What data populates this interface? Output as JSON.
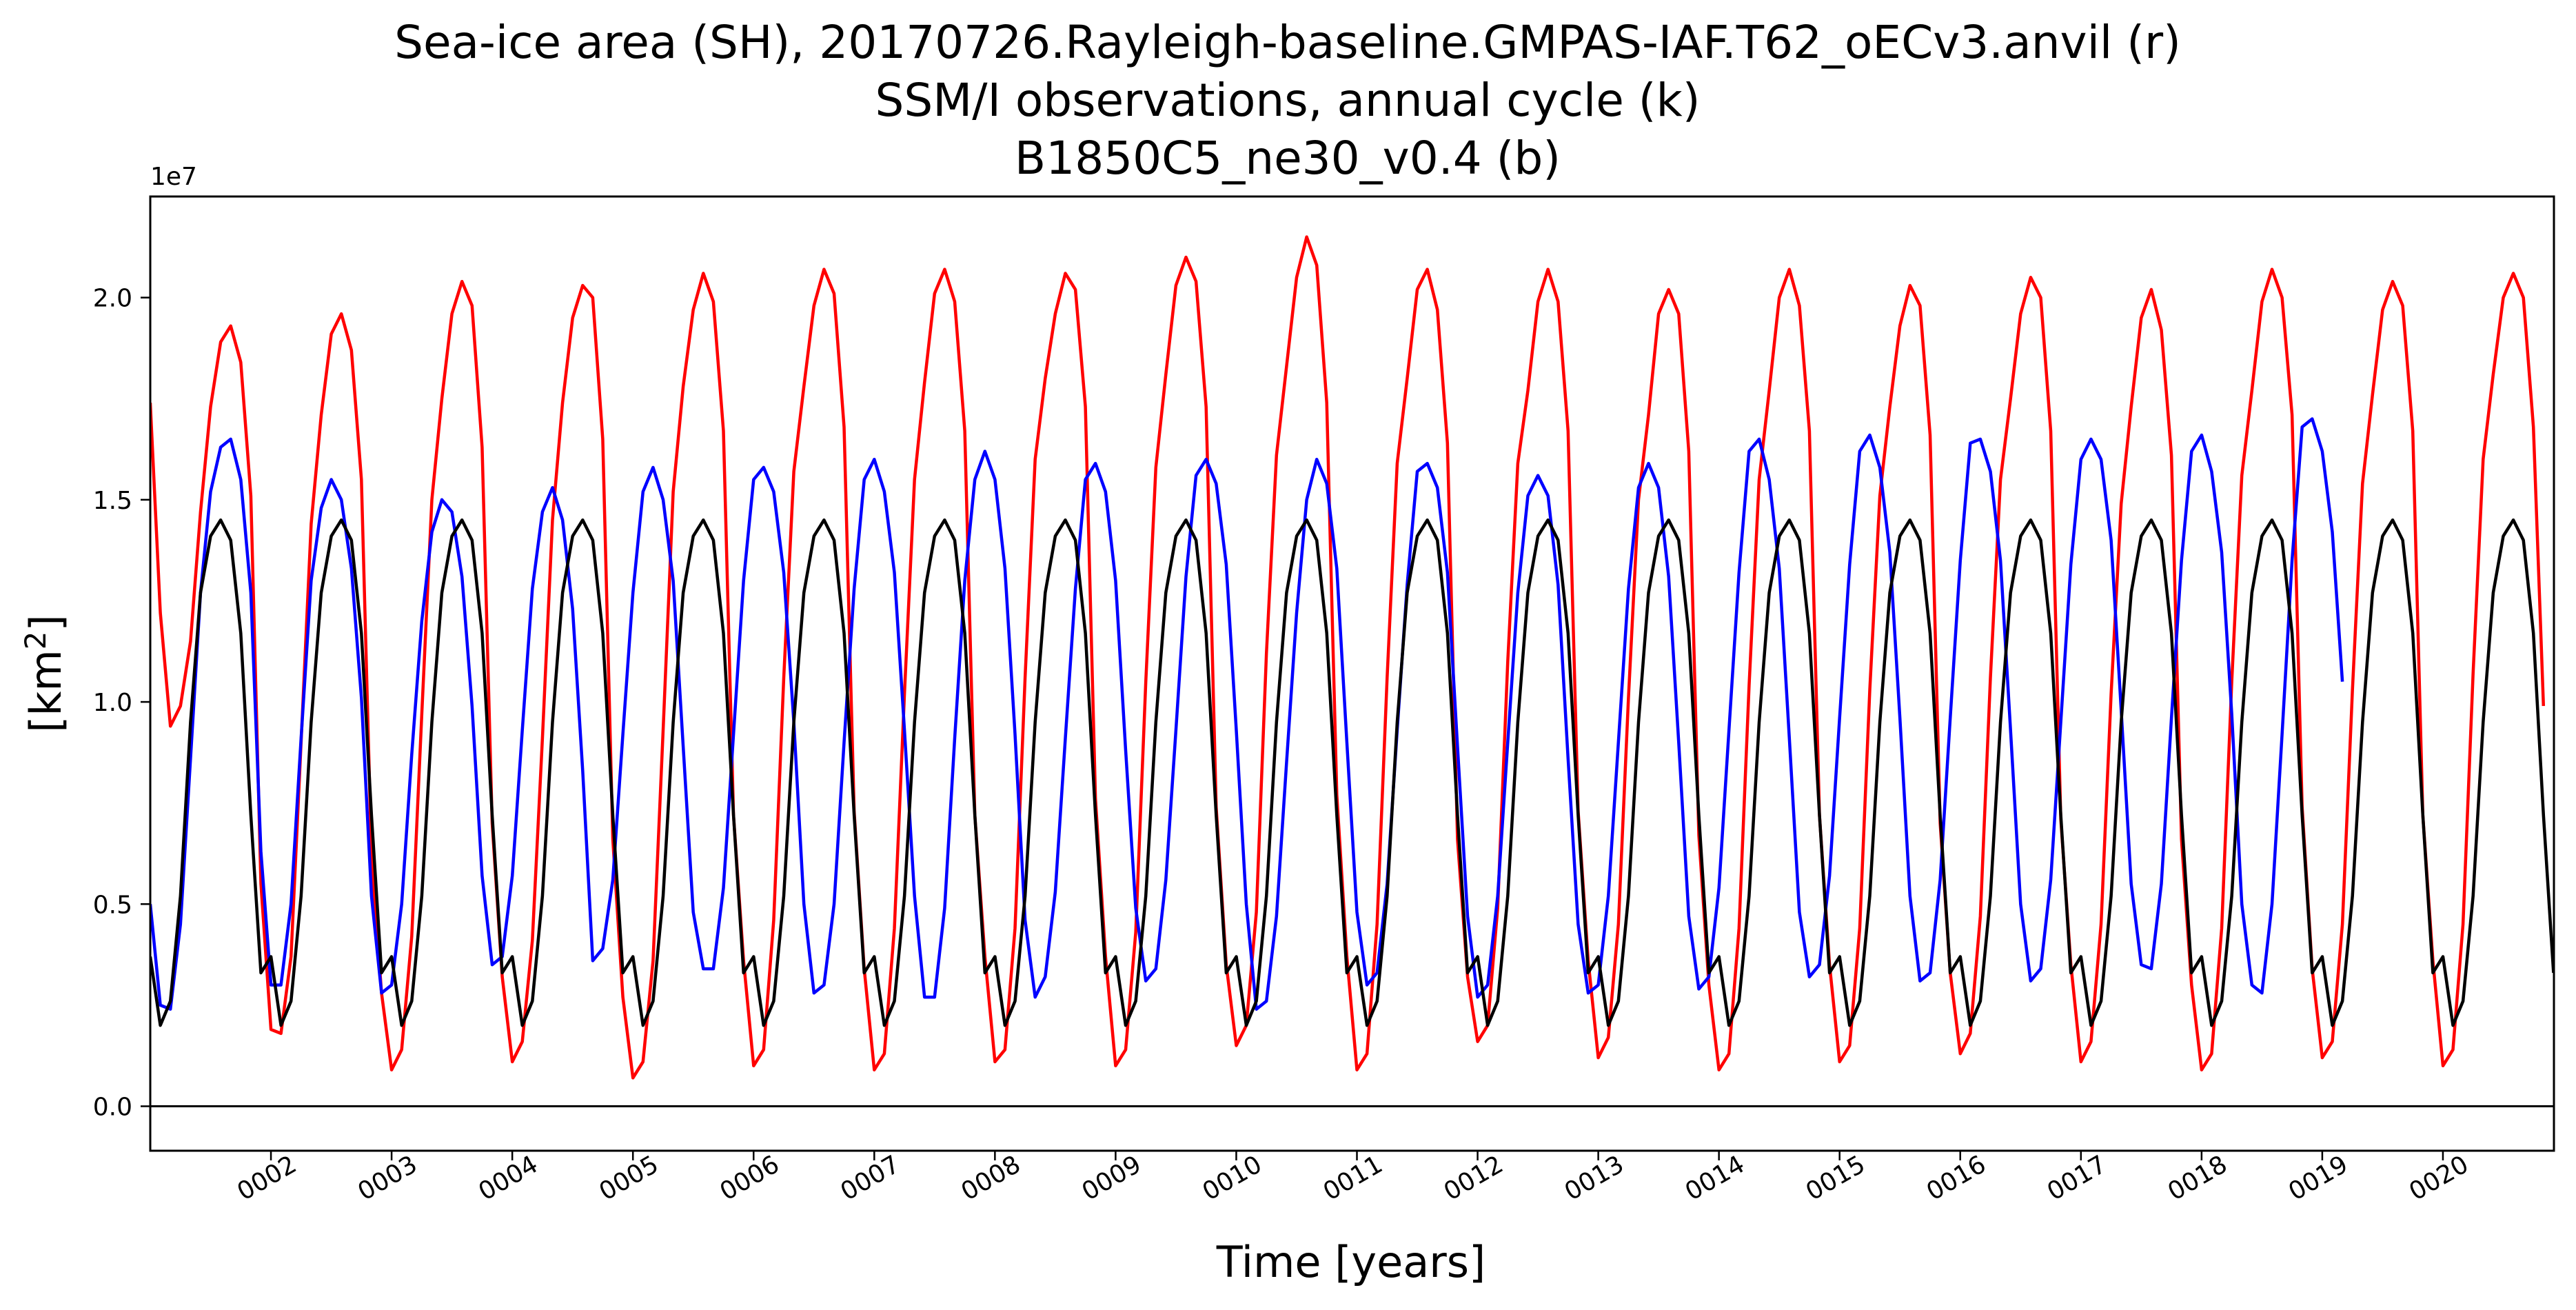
{
  "chart_data": {
    "type": "line",
    "title_lines": [
      "Sea-ice area (SH), 20170726.Rayleigh-baseline.GMPAS-IAF.T62_oECv3.anvil (r)",
      "SSM/I observations, annual cycle (k)",
      "B1850C5_ne30_v0.4 (b)"
    ],
    "xlabel": "Time [years]",
    "ylabel_text": "[km",
    "ylabel_superscript": "2",
    "ylabel_close": "]",
    "offset_text": "1e7",
    "scale_factor": 10000000,
    "xlim": [
      1.0,
      20.92
    ],
    "ylim": [
      -0.11,
      2.25
    ],
    "grid": false,
    "zero_line": true,
    "x_ticks": [
      2,
      3,
      4,
      5,
      6,
      7,
      8,
      9,
      10,
      11,
      12,
      13,
      14,
      15,
      16,
      17,
      18,
      19,
      20
    ],
    "x_tick_labels": [
      "0002",
      "0003",
      "0004",
      "0005",
      "0006",
      "0007",
      "0008",
      "0009",
      "0010",
      "0011",
      "0012",
      "0013",
      "0014",
      "0015",
      "0016",
      "0017",
      "0018",
      "0019",
      "0020"
    ],
    "x_tick_rotation_deg": -30,
    "y_ticks": [
      0.0,
      0.5,
      1.0,
      1.5,
      2.0
    ],
    "y_tick_labels": [
      "0.0",
      "0.5",
      "1.0",
      "1.5",
      "2.0"
    ],
    "months_per_year": 12,
    "series": [
      {
        "color": "#ff0000",
        "start_x": 1.0,
        "step": 0.08333,
        "values": [
          1.74,
          1.22,
          0.94,
          0.99,
          1.15,
          1.47,
          1.73,
          1.89,
          1.93,
          1.84,
          1.51,
          0.55,
          0.19,
          0.18,
          0.37,
          0.9,
          1.44,
          1.71,
          1.91,
          1.96,
          1.87,
          1.55,
          0.62,
          0.28,
          0.09,
          0.14,
          0.42,
          0.97,
          1.5,
          1.75,
          1.96,
          2.04,
          1.98,
          1.63,
          0.7,
          0.32,
          0.11,
          0.16,
          0.41,
          0.91,
          1.45,
          1.74,
          1.95,
          2.03,
          2.0,
          1.65,
          0.66,
          0.27,
          0.07,
          0.11,
          0.36,
          0.93,
          1.52,
          1.78,
          1.97,
          2.06,
          1.99,
          1.67,
          0.72,
          0.36,
          0.1,
          0.14,
          0.46,
          1.06,
          1.57,
          1.78,
          1.98,
          2.07,
          2.01,
          1.68,
          0.73,
          0.34,
          0.09,
          0.13,
          0.44,
          1.02,
          1.55,
          1.79,
          2.01,
          2.07,
          1.99,
          1.67,
          0.72,
          0.37,
          0.11,
          0.14,
          0.44,
          1.06,
          1.6,
          1.8,
          1.96,
          2.06,
          2.02,
          1.73,
          0.76,
          0.37,
          0.1,
          0.14,
          0.43,
          1.05,
          1.58,
          1.81,
          2.03,
          2.1,
          2.04,
          1.73,
          0.74,
          0.35,
          0.15,
          0.2,
          0.48,
          1.12,
          1.61,
          1.83,
          2.05,
          2.15,
          2.08,
          1.74,
          0.77,
          0.37,
          0.09,
          0.13,
          0.45,
          1.06,
          1.59,
          1.8,
          2.02,
          2.07,
          1.97,
          1.64,
          0.66,
          0.32,
          0.16,
          0.2,
          0.49,
          1.1,
          1.59,
          1.77,
          1.99,
          2.07,
          1.99,
          1.67,
          0.73,
          0.36,
          0.12,
          0.17,
          0.45,
          1.01,
          1.5,
          1.71,
          1.96,
          2.02,
          1.96,
          1.62,
          0.67,
          0.3,
          0.09,
          0.13,
          0.44,
          1.04,
          1.55,
          1.77,
          2.0,
          2.07,
          1.98,
          1.67,
          0.72,
          0.35,
          0.11,
          0.15,
          0.44,
          1.03,
          1.51,
          1.73,
          1.93,
          2.03,
          1.98,
          1.66,
          0.7,
          0.33,
          0.13,
          0.18,
          0.47,
          1.06,
          1.55,
          1.75,
          1.96,
          2.05,
          2.0,
          1.67,
          0.71,
          0.35,
          0.11,
          0.16,
          0.45,
          1.02,
          1.49,
          1.73,
          1.95,
          2.02,
          1.92,
          1.61,
          0.66,
          0.3,
          0.09,
          0.13,
          0.44,
          1.05,
          1.56,
          1.77,
          1.99,
          2.07,
          2.0,
          1.71,
          0.74,
          0.34,
          0.12,
          0.16,
          0.45,
          1.03,
          1.54,
          1.76,
          1.97,
          2.04,
          1.98,
          1.67,
          0.72,
          0.36,
          0.1,
          0.14,
          0.45,
          1.07,
          1.6,
          1.81,
          2.0,
          2.06,
          2.0,
          1.68,
          0.99
        ]
      },
      {
        "color": "#0000ff",
        "start_x": 1.0,
        "step": 0.08333,
        "values": [
          0.5,
          0.25,
          0.24,
          0.45,
          0.86,
          1.27,
          1.52,
          1.63,
          1.65,
          1.55,
          1.27,
          0.63,
          0.3,
          0.3,
          0.5,
          0.91,
          1.3,
          1.48,
          1.55,
          1.5,
          1.33,
          1.01,
          0.52,
          0.28,
          0.3,
          0.5,
          0.87,
          1.2,
          1.42,
          1.5,
          1.47,
          1.31,
          0.99,
          0.57,
          0.35,
          0.37,
          0.57,
          0.93,
          1.28,
          1.47,
          1.53,
          1.45,
          1.23,
          0.83,
          0.36,
          0.39,
          0.56,
          0.92,
          1.27,
          1.52,
          1.58,
          1.5,
          1.3,
          0.89,
          0.48,
          0.34,
          0.34,
          0.54,
          0.92,
          1.3,
          1.55,
          1.58,
          1.52,
          1.32,
          0.95,
          0.5,
          0.28,
          0.3,
          0.5,
          0.9,
          1.28,
          1.55,
          1.6,
          1.52,
          1.32,
          0.93,
          0.52,
          0.27,
          0.27,
          0.49,
          0.91,
          1.3,
          1.55,
          1.62,
          1.55,
          1.33,
          0.92,
          0.46,
          0.27,
          0.32,
          0.53,
          0.91,
          1.28,
          1.55,
          1.59,
          1.52,
          1.3,
          0.88,
          0.49,
          0.31,
          0.34,
          0.56,
          0.93,
          1.31,
          1.56,
          1.6,
          1.54,
          1.34,
          0.93,
          0.5,
          0.24,
          0.26,
          0.47,
          0.85,
          1.22,
          1.5,
          1.6,
          1.54,
          1.33,
          0.9,
          0.48,
          0.3,
          0.33,
          0.55,
          0.93,
          1.29,
          1.57,
          1.59,
          1.53,
          1.32,
          0.89,
          0.47,
          0.27,
          0.3,
          0.52,
          0.9,
          1.27,
          1.51,
          1.56,
          1.51,
          1.29,
          0.86,
          0.45,
          0.28,
          0.3,
          0.52,
          0.9,
          1.28,
          1.53,
          1.59,
          1.53,
          1.31,
          0.9,
          0.47,
          0.29,
          0.32,
          0.54,
          0.93,
          1.32,
          1.62,
          1.65,
          1.55,
          1.33,
          0.91,
          0.48,
          0.32,
          0.35,
          0.57,
          0.96,
          1.34,
          1.62,
          1.66,
          1.58,
          1.37,
          0.96,
          0.52,
          0.31,
          0.33,
          0.56,
          0.96,
          1.35,
          1.64,
          1.65,
          1.57,
          1.35,
          0.93,
          0.5,
          0.31,
          0.34,
          0.56,
          0.95,
          1.34,
          1.6,
          1.65,
          1.6,
          1.4,
          0.98,
          0.55,
          0.35,
          0.34,
          0.55,
          0.96,
          1.35,
          1.62,
          1.66,
          1.57,
          1.37,
          0.97,
          0.5,
          0.3,
          0.28,
          0.5,
          0.92,
          1.35,
          1.68,
          1.7,
          1.62,
          1.42,
          1.05
        ]
      },
      {
        "color": "#000000",
        "start_x": 1.0,
        "step": 0.08333,
        "cycle": true,
        "values": [
          0.37,
          0.2,
          0.26,
          0.52,
          0.95,
          1.27,
          1.41,
          1.45,
          1.4,
          1.17,
          0.72,
          0.33
        ]
      }
    ]
  }
}
